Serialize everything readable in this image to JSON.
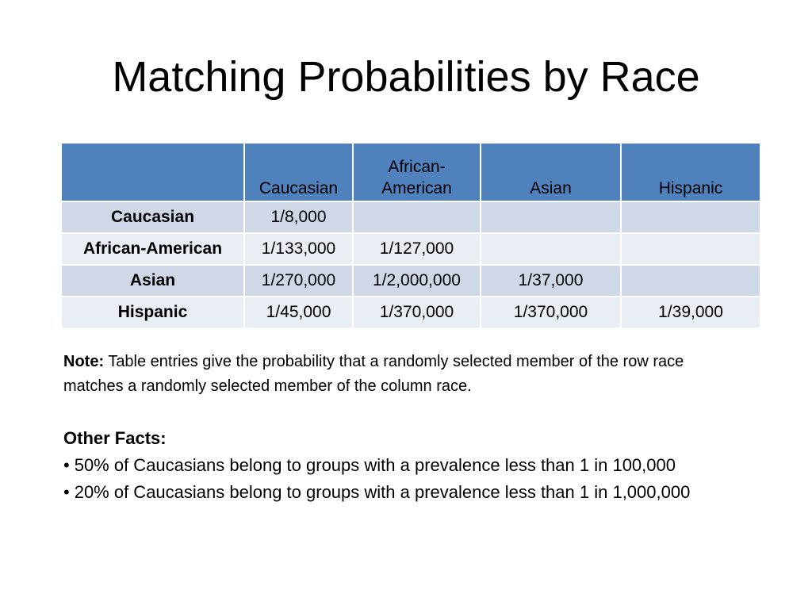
{
  "slide": {
    "title": "Matching Probabilities by Race"
  },
  "table": {
    "columns": [
      "",
      "Caucasian",
      "African-American",
      "Asian",
      "Hispanic"
    ],
    "rows": [
      {
        "label": "Caucasian",
        "cells": [
          "1/8,000",
          "",
          "",
          ""
        ]
      },
      {
        "label": "African-American",
        "cells": [
          "1/133,000",
          "1/127,000",
          "",
          ""
        ]
      },
      {
        "label": "Asian",
        "cells": [
          "1/270,000",
          "1/2,000,000",
          "1/37,000",
          ""
        ]
      },
      {
        "label": "Hispanic",
        "cells": [
          "1/45,000",
          "1/370,000",
          "1/370,000",
          "1/39,000"
        ]
      }
    ]
  },
  "note": {
    "label": "Note:",
    "text": "Table entries give the probability that a randomly selected member of the row race matches a randomly selected member of the column race."
  },
  "facts": {
    "heading": "Other Facts:",
    "bullet": "•",
    "items": [
      "50% of Caucasians belong to groups with a prevalence less than 1 in 100,000",
      "20% of Caucasians belong to groups with a prevalence less than 1 in 1,000,000"
    ]
  },
  "colors": {
    "header_fill": "#4f81bd",
    "band_dark": "#d0d8e8",
    "band_light": "#e9edf4"
  }
}
